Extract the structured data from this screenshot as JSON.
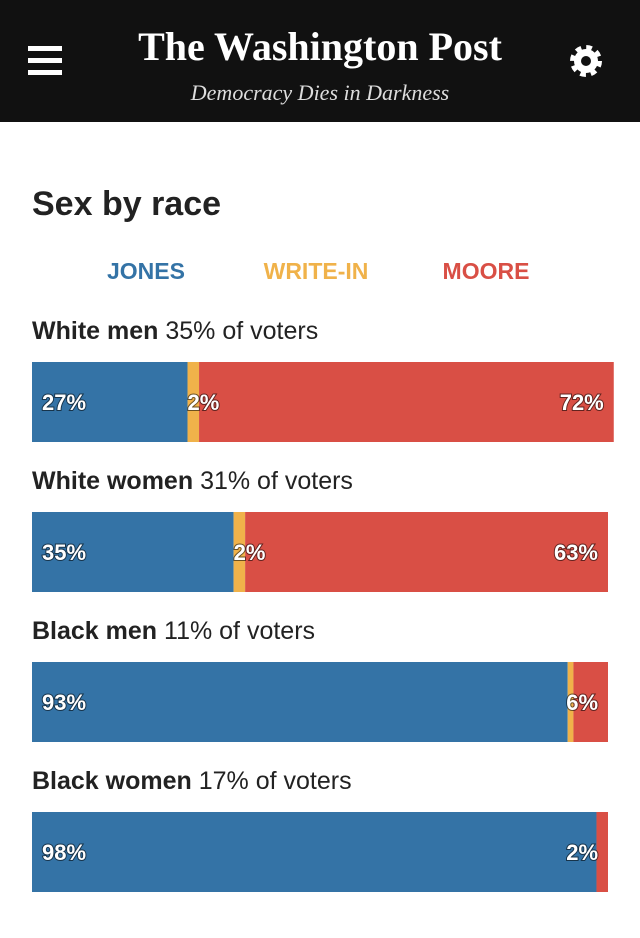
{
  "header": {
    "title": "The Washington Post",
    "tagline": "Democracy Dies in Darkness"
  },
  "chart_data": {
    "type": "stacked_bar_horizontal",
    "title": "Sex by race",
    "categories": [
      "White men",
      "White women",
      "Black men",
      "Black women"
    ],
    "category_notes": [
      "35% of voters",
      "31% of voters",
      "11% of voters",
      "17% of voters"
    ],
    "xlim": [
      0,
      100
    ],
    "series": [
      {
        "name": "JONES",
        "color": "#3473a6",
        "values": [
          27,
          35,
          93,
          98
        ],
        "value_labels": [
          "27%",
          "35%",
          "93%",
          "98%"
        ]
      },
      {
        "name": "WRITE-IN",
        "color": "#f0b24a",
        "values": [
          2,
          2,
          1,
          0
        ],
        "value_labels": [
          "2%",
          "2%",
          null,
          null
        ]
      },
      {
        "name": "MOORE",
        "color": "#d94f45",
        "values": [
          72,
          63,
          6,
          2
        ],
        "value_labels": [
          "72%",
          "63%",
          "6%",
          "2%"
        ]
      }
    ]
  }
}
